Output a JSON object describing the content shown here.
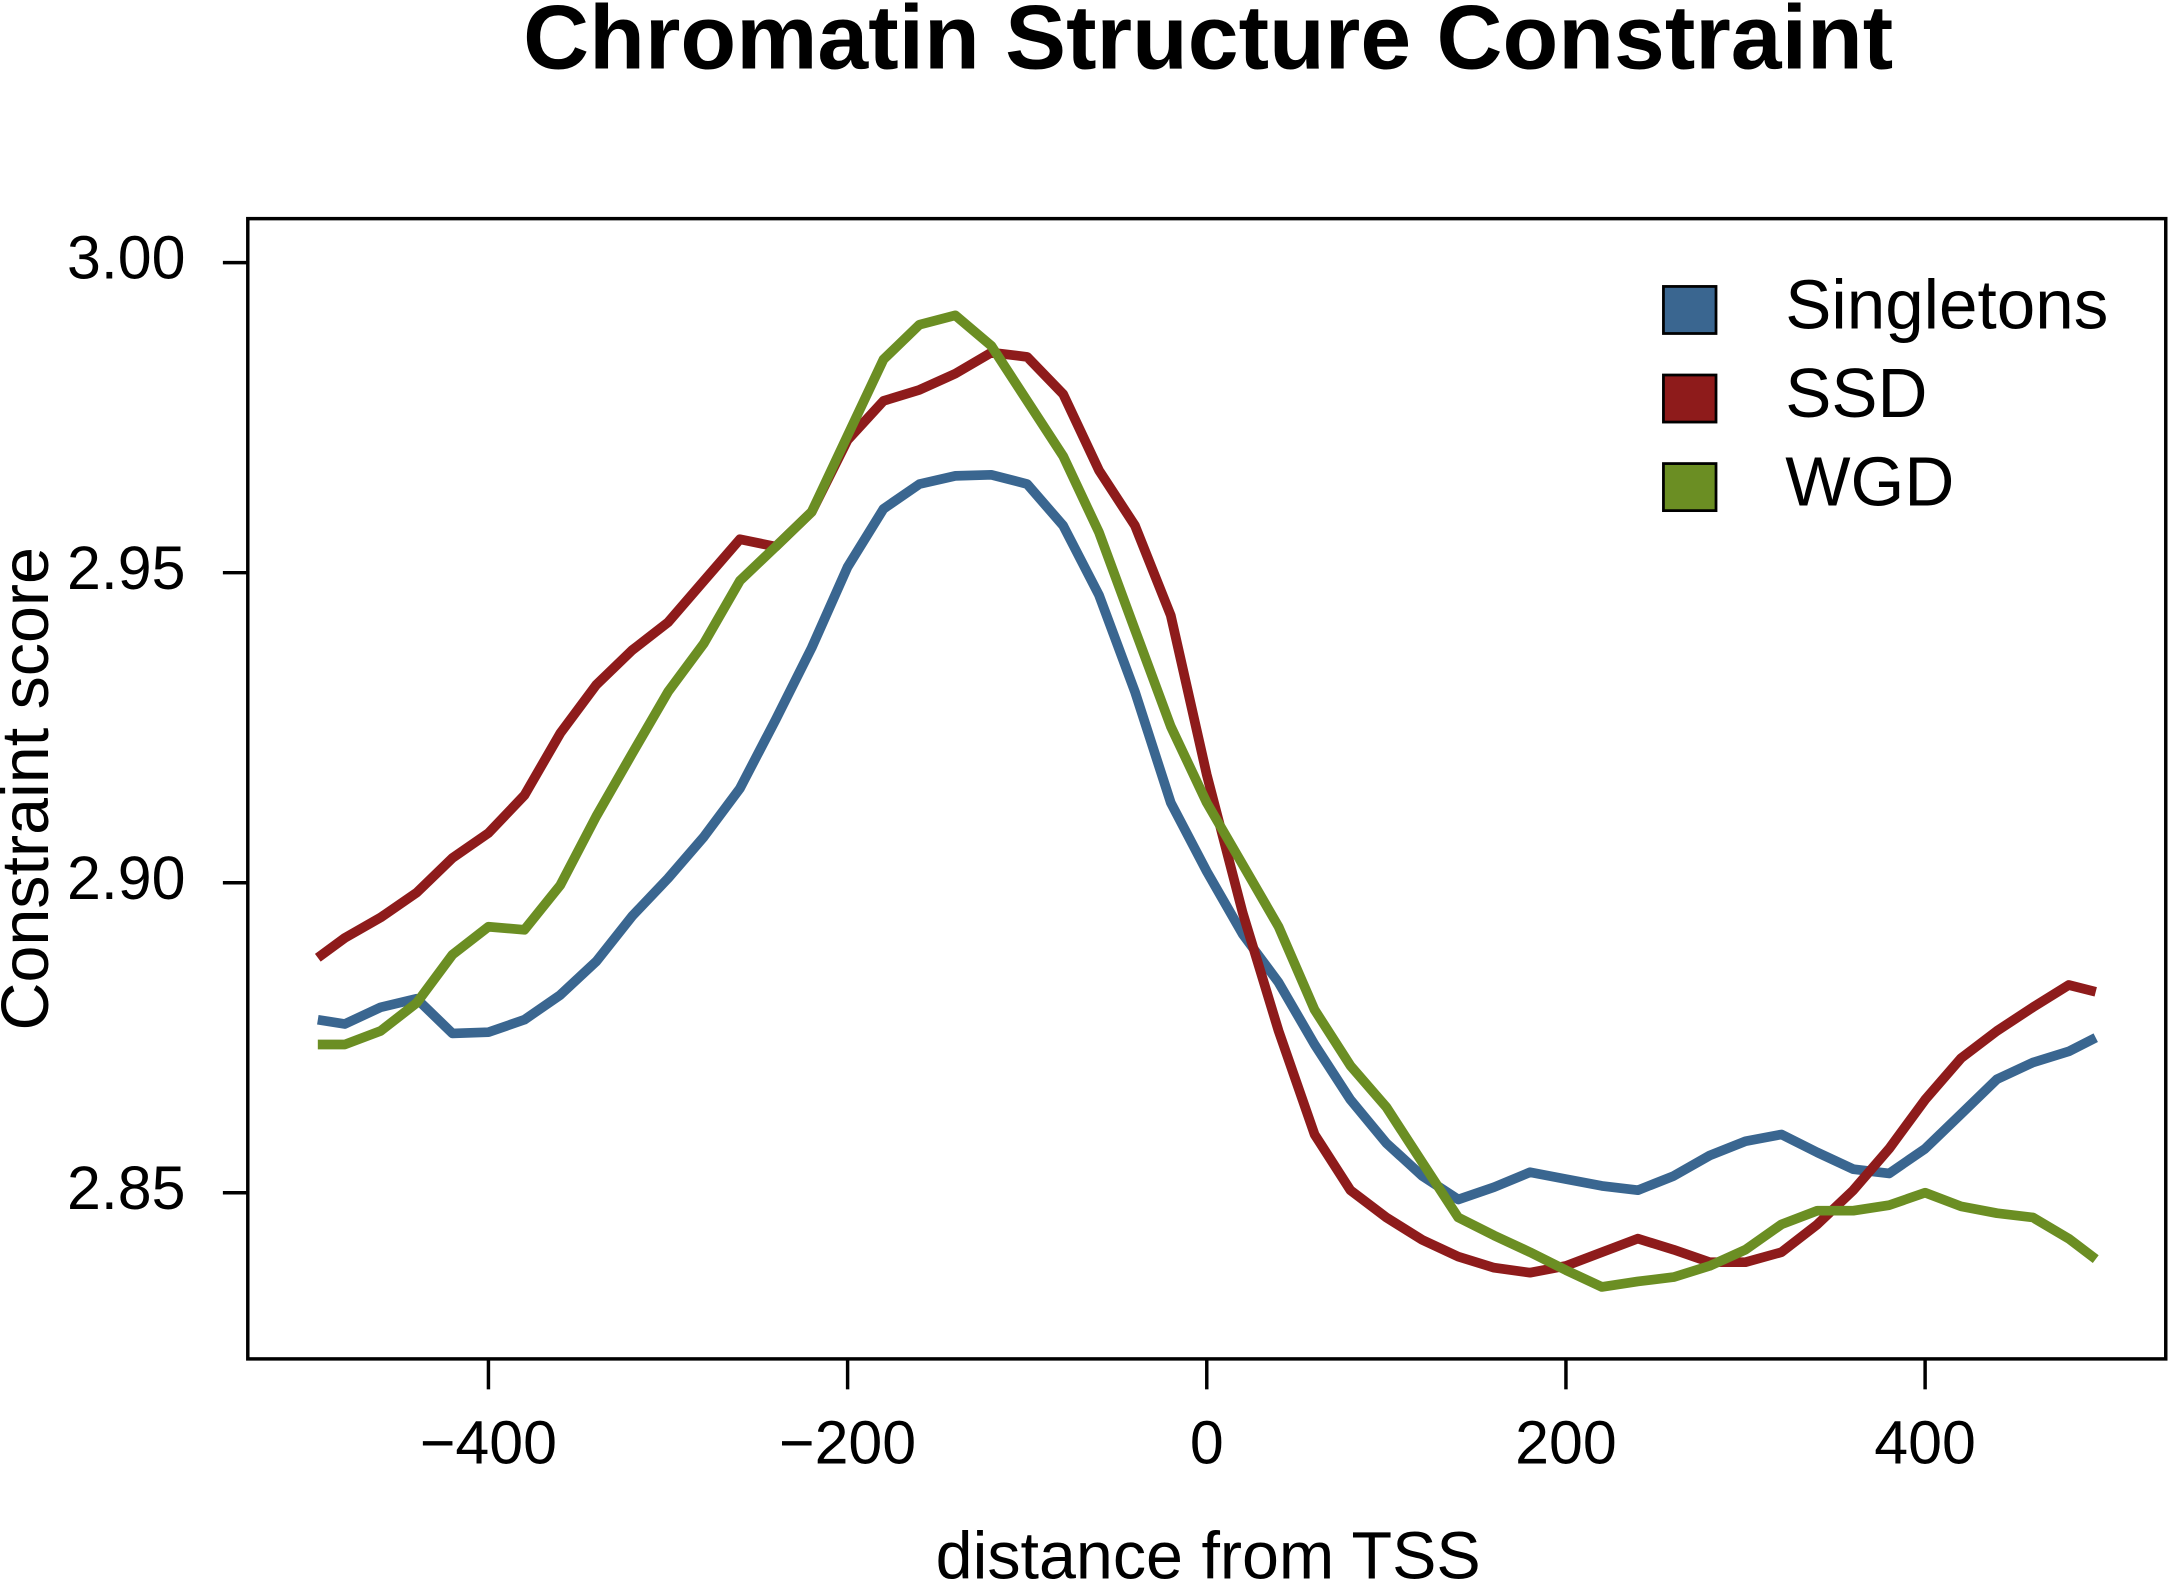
{
  "chart_data": {
    "type": "line",
    "title": "Chromatin Structure Constraint",
    "x_label": "distance from TSS",
    "y_label": "Constraint score",
    "x": [
      -495,
      -480,
      -460,
      -440,
      -420,
      -400,
      -380,
      -360,
      -340,
      -320,
      -300,
      -280,
      -260,
      -240,
      -220,
      -200,
      -180,
      -160,
      -140,
      -120,
      -100,
      -80,
      -60,
      -40,
      -20,
      0,
      20,
      40,
      60,
      80,
      100,
      120,
      140,
      160,
      180,
      200,
      220,
      240,
      260,
      280,
      300,
      320,
      340,
      360,
      380,
      400,
      420,
      440,
      460,
      480,
      495
    ],
    "series": [
      {
        "name": "Singletons",
        "color": "#3a6690",
        "values": [
          2.8779,
          2.8772,
          2.8799,
          2.8813,
          2.8757,
          2.8759,
          2.8779,
          2.8819,
          2.8873,
          2.8946,
          2.9007,
          2.9074,
          2.9152,
          2.9263,
          2.9379,
          2.9509,
          2.9603,
          2.9643,
          2.9656,
          2.9658,
          2.9643,
          2.9576,
          2.9464,
          2.9308,
          2.9129,
          2.9018,
          2.8917,
          2.8839,
          2.8739,
          2.865,
          2.858,
          2.8527,
          2.8489,
          2.8509,
          2.8533,
          2.8522,
          2.8511,
          2.8504,
          2.8527,
          2.856,
          2.8583,
          2.8594,
          2.8565,
          2.8538,
          2.8531,
          2.8571,
          2.8627,
          2.8683,
          2.871,
          2.8728,
          2.875
        ]
      },
      {
        "name": "SSD",
        "color": "#8e1b1b",
        "values": [
          2.8879,
          2.8911,
          2.8944,
          2.8984,
          2.904,
          2.908,
          2.9141,
          2.9241,
          2.9319,
          2.9375,
          2.942,
          2.9487,
          2.9554,
          2.9542,
          2.9598,
          2.9714,
          2.9777,
          2.9795,
          2.9821,
          2.9855,
          2.9848,
          2.9788,
          2.9665,
          2.9576,
          2.9431,
          2.9174,
          2.8951,
          2.8761,
          2.8594,
          2.8504,
          2.846,
          2.8424,
          2.8397,
          2.8379,
          2.8371,
          2.8382,
          2.8404,
          2.8426,
          2.8408,
          2.8388,
          2.8388,
          2.8404,
          2.8449,
          2.8504,
          2.8571,
          2.865,
          2.8717,
          2.8761,
          2.8799,
          2.8835,
          2.8824
        ]
      },
      {
        "name": "WGD",
        "color": "#6b8e23",
        "values": [
          2.8739,
          2.8739,
          2.8761,
          2.8806,
          2.8884,
          2.8929,
          2.8924,
          2.8996,
          2.9107,
          2.9208,
          2.9308,
          2.9386,
          2.9487,
          2.9542,
          2.9598,
          2.9721,
          2.9844,
          2.99,
          2.9915,
          2.9866,
          2.9777,
          2.9688,
          2.9565,
          2.9408,
          2.9252,
          2.9129,
          2.9029,
          2.8929,
          2.8795,
          2.8705,
          2.8638,
          2.8549,
          2.846,
          2.8431,
          2.8404,
          2.8375,
          2.8348,
          2.8357,
          2.8364,
          2.8382,
          2.8408,
          2.8449,
          2.8471,
          2.8471,
          2.848,
          2.85,
          2.8478,
          2.8467,
          2.846,
          2.8426,
          2.8393
        ]
      }
    ],
    "xlim": [
      -534,
      534
    ],
    "ylim": [
      2.8232,
      3.0071
    ],
    "xticks": [
      {
        "value": -400,
        "label": "−400"
      },
      {
        "value": -200,
        "label": "−200"
      },
      0,
      200,
      400
    ],
    "yticks": [
      2.85,
      {
        "value": 2.9,
        "label": "2.90"
      },
      2.95,
      {
        "value": 3,
        "label": "3.00"
      }
    ],
    "legend": "top-right"
  }
}
